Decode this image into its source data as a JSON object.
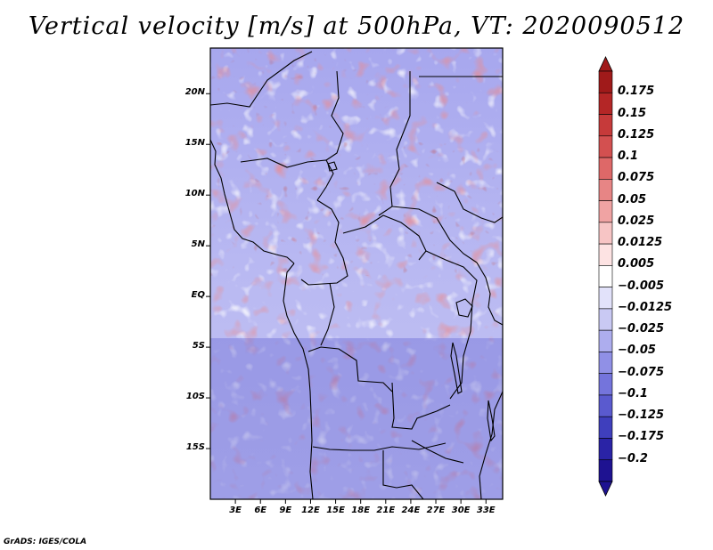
{
  "title": "Vertical velocity [m/s] at 500hPa, VT: 2020090512",
  "credit": "GrADS: IGES/COLA",
  "latitude_labels": [
    "20N",
    "15N",
    "10N",
    "5N",
    "EQ",
    "5S",
    "10S",
    "15S"
  ],
  "latitude_values": [
    20,
    15,
    10,
    5,
    0,
    -5,
    -10,
    -15
  ],
  "longitude_labels": [
    "3E",
    "6E",
    "9E",
    "12E",
    "15E",
    "18E",
    "21E",
    "24E",
    "27E",
    "30E",
    "33E"
  ],
  "longitude_values": [
    3,
    6,
    9,
    12,
    15,
    18,
    21,
    24,
    27,
    30,
    33
  ],
  "map_extent": {
    "lon_min": 0,
    "lon_max": 35,
    "lat_min": -20,
    "lat_max": 24.5
  },
  "colorbar": {
    "labels": [
      "0.175",
      "0.15",
      "0.125",
      "0.1",
      "0.075",
      "0.05",
      "0.025",
      "0.0125",
      "0.005",
      "−0.005",
      "−0.0125",
      "−0.025",
      "−0.05",
      "−0.075",
      "−0.1",
      "−0.125",
      "−0.175",
      "−0.2"
    ],
    "colors": [
      "#a01a1a",
      "#b42626",
      "#c63a3a",
      "#d35050",
      "#de6868",
      "#e78585",
      "#f0a3a3",
      "#f7c5c5",
      "#fde3e3",
      "#ffffff",
      "#e2e2fa",
      "#c9c9f3",
      "#adadee",
      "#9090e6",
      "#7474dc",
      "#5a5acf",
      "#3f3fbd",
      "#2a23a6",
      "#1e1291"
    ]
  }
}
